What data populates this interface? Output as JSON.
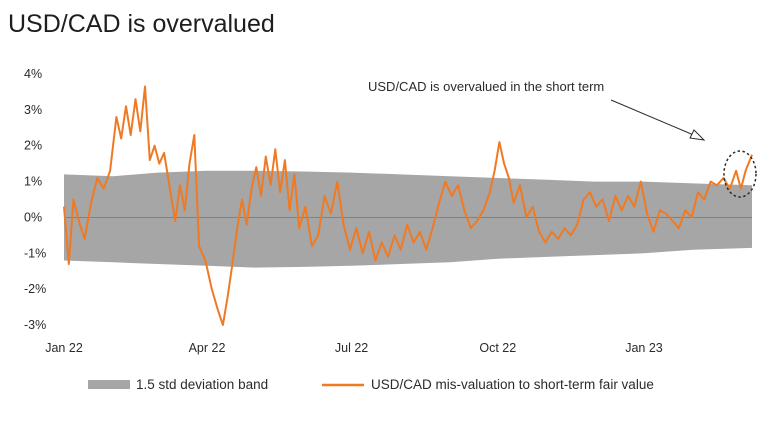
{
  "title": "USD/CAD is overvalued",
  "chart_data": {
    "type": "line",
    "title": "USD/CAD is overvalued",
    "xlabel": "",
    "ylabel": "",
    "ylim": [
      -3,
      4
    ],
    "yticks": [
      "4%",
      "3%",
      "2%",
      "1%",
      "0%",
      "-1%",
      "-2%",
      "-3%"
    ],
    "ytick_values": [
      4,
      3,
      2,
      1,
      0,
      -1,
      -2,
      -3
    ],
    "xticks": [
      "Jan 22",
      "Apr 22",
      "Jul 22",
      "Oct 22",
      "Jan 23"
    ],
    "xtick_dates": [
      "2022-01-01",
      "2022-04-01",
      "2022-07-01",
      "2022-10-01",
      "2023-01-01"
    ],
    "x_range": [
      "2022-01-01",
      "2023-03-10"
    ],
    "grid": false,
    "legend_position": "bottom",
    "annotation": "USD/CAD is overvalued in the short term",
    "band": {
      "name": "1.5 std deviation band",
      "color": "#a6a6a6",
      "points": [
        {
          "x": "2022-01-01",
          "upper": 1.2,
          "lower": -1.2
        },
        {
          "x": "2022-02-01",
          "upper": 1.15,
          "lower": -1.25
        },
        {
          "x": "2022-03-01",
          "upper": 1.25,
          "lower": -1.3
        },
        {
          "x": "2022-04-01",
          "upper": 1.3,
          "lower": -1.35
        },
        {
          "x": "2022-05-01",
          "upper": 1.3,
          "lower": -1.4
        },
        {
          "x": "2022-06-01",
          "upper": 1.28,
          "lower": -1.38
        },
        {
          "x": "2022-07-01",
          "upper": 1.25,
          "lower": -1.35
        },
        {
          "x": "2022-08-01",
          "upper": 1.2,
          "lower": -1.3
        },
        {
          "x": "2022-09-01",
          "upper": 1.15,
          "lower": -1.25
        },
        {
          "x": "2022-10-01",
          "upper": 1.1,
          "lower": -1.15
        },
        {
          "x": "2022-11-01",
          "upper": 1.05,
          "lower": -1.1
        },
        {
          "x": "2022-12-01",
          "upper": 1.0,
          "lower": -1.05
        },
        {
          "x": "2023-01-01",
          "upper": 1.0,
          "lower": -1.0
        },
        {
          "x": "2023-02-01",
          "upper": 0.95,
          "lower": -0.9
        },
        {
          "x": "2023-03-10",
          "upper": 0.9,
          "lower": -0.85
        }
      ]
    },
    "series": [
      {
        "name": "USD/CAD mis-valuation to short-term fair value",
        "color": "#f07a23",
        "points": [
          {
            "x": "2022-01-01",
            "y": 0.3
          },
          {
            "x": "2022-01-04",
            "y": -1.3
          },
          {
            "x": "2022-01-07",
            "y": 0.5
          },
          {
            "x": "2022-01-11",
            "y": -0.2
          },
          {
            "x": "2022-01-14",
            "y": -0.6
          },
          {
            "x": "2022-01-18",
            "y": 0.4
          },
          {
            "x": "2022-01-22",
            "y": 1.1
          },
          {
            "x": "2022-01-26",
            "y": 0.8
          },
          {
            "x": "2022-01-30",
            "y": 1.3
          },
          {
            "x": "2022-02-03",
            "y": 2.8
          },
          {
            "x": "2022-02-06",
            "y": 2.2
          },
          {
            "x": "2022-02-09",
            "y": 3.1
          },
          {
            "x": "2022-02-12",
            "y": 2.3
          },
          {
            "x": "2022-02-15",
            "y": 3.3
          },
          {
            "x": "2022-02-18",
            "y": 2.4
          },
          {
            "x": "2022-02-21",
            "y": 3.65
          },
          {
            "x": "2022-02-24",
            "y": 1.6
          },
          {
            "x": "2022-02-27",
            "y": 2.0
          },
          {
            "x": "2022-03-02",
            "y": 1.5
          },
          {
            "x": "2022-03-05",
            "y": 1.8
          },
          {
            "x": "2022-03-09",
            "y": 0.7
          },
          {
            "x": "2022-03-12",
            "y": -0.1
          },
          {
            "x": "2022-03-15",
            "y": 0.9
          },
          {
            "x": "2022-03-18",
            "y": 0.2
          },
          {
            "x": "2022-03-21",
            "y": 1.5
          },
          {
            "x": "2022-03-24",
            "y": 2.3
          },
          {
            "x": "2022-03-27",
            "y": -0.8
          },
          {
            "x": "2022-03-31",
            "y": -1.2
          },
          {
            "x": "2022-04-04",
            "y": -2.0
          },
          {
            "x": "2022-04-08",
            "y": -2.6
          },
          {
            "x": "2022-04-11",
            "y": -3.0
          },
          {
            "x": "2022-04-14",
            "y": -2.2
          },
          {
            "x": "2022-04-17",
            "y": -1.3
          },
          {
            "x": "2022-04-20",
            "y": -0.3
          },
          {
            "x": "2022-04-23",
            "y": 0.5
          },
          {
            "x": "2022-04-26",
            "y": -0.2
          },
          {
            "x": "2022-04-29",
            "y": 0.8
          },
          {
            "x": "2022-05-02",
            "y": 1.4
          },
          {
            "x": "2022-05-05",
            "y": 0.6
          },
          {
            "x": "2022-05-08",
            "y": 1.7
          },
          {
            "x": "2022-05-11",
            "y": 0.9
          },
          {
            "x": "2022-05-14",
            "y": 1.9
          },
          {
            "x": "2022-05-17",
            "y": 0.7
          },
          {
            "x": "2022-05-20",
            "y": 1.6
          },
          {
            "x": "2022-05-23",
            "y": 0.2
          },
          {
            "x": "2022-05-26",
            "y": 1.2
          },
          {
            "x": "2022-05-29",
            "y": -0.3
          },
          {
            "x": "2022-06-02",
            "y": 0.3
          },
          {
            "x": "2022-06-06",
            "y": -0.8
          },
          {
            "x": "2022-06-10",
            "y": -0.5
          },
          {
            "x": "2022-06-14",
            "y": 0.6
          },
          {
            "x": "2022-06-18",
            "y": 0.1
          },
          {
            "x": "2022-06-22",
            "y": 1.0
          },
          {
            "x": "2022-06-26",
            "y": -0.2
          },
          {
            "x": "2022-06-30",
            "y": -0.9
          },
          {
            "x": "2022-07-04",
            "y": -0.3
          },
          {
            "x": "2022-07-08",
            "y": -1.0
          },
          {
            "x": "2022-07-12",
            "y": -0.4
          },
          {
            "x": "2022-07-16",
            "y": -1.2
          },
          {
            "x": "2022-07-20",
            "y": -0.7
          },
          {
            "x": "2022-07-24",
            "y": -1.1
          },
          {
            "x": "2022-07-28",
            "y": -0.5
          },
          {
            "x": "2022-08-01",
            "y": -0.9
          },
          {
            "x": "2022-08-05",
            "y": -0.2
          },
          {
            "x": "2022-08-09",
            "y": -0.7
          },
          {
            "x": "2022-08-13",
            "y": -0.4
          },
          {
            "x": "2022-08-17",
            "y": -0.9
          },
          {
            "x": "2022-08-21",
            "y": -0.3
          },
          {
            "x": "2022-08-25",
            "y": 0.4
          },
          {
            "x": "2022-08-29",
            "y": 1.0
          },
          {
            "x": "2022-09-02",
            "y": 0.6
          },
          {
            "x": "2022-09-06",
            "y": 0.9
          },
          {
            "x": "2022-09-10",
            "y": 0.2
          },
          {
            "x": "2022-09-14",
            "y": -0.3
          },
          {
            "x": "2022-09-18",
            "y": -0.1
          },
          {
            "x": "2022-09-22",
            "y": 0.2
          },
          {
            "x": "2022-09-26",
            "y": 0.7
          },
          {
            "x": "2022-09-29",
            "y": 1.3
          },
          {
            "x": "2022-10-02",
            "y": 2.1
          },
          {
            "x": "2022-10-05",
            "y": 1.5
          },
          {
            "x": "2022-10-08",
            "y": 1.1
          },
          {
            "x": "2022-10-11",
            "y": 0.4
          },
          {
            "x": "2022-10-15",
            "y": 0.9
          },
          {
            "x": "2022-10-19",
            "y": 0.0
          },
          {
            "x": "2022-10-23",
            "y": 0.3
          },
          {
            "x": "2022-10-27",
            "y": -0.4
          },
          {
            "x": "2022-10-31",
            "y": -0.7
          },
          {
            "x": "2022-11-04",
            "y": -0.4
          },
          {
            "x": "2022-11-08",
            "y": -0.6
          },
          {
            "x": "2022-11-12",
            "y": -0.3
          },
          {
            "x": "2022-11-16",
            "y": -0.5
          },
          {
            "x": "2022-11-20",
            "y": -0.2
          },
          {
            "x": "2022-11-24",
            "y": 0.5
          },
          {
            "x": "2022-11-28",
            "y": 0.7
          },
          {
            "x": "2022-12-02",
            "y": 0.3
          },
          {
            "x": "2022-12-06",
            "y": 0.5
          },
          {
            "x": "2022-12-10",
            "y": -0.1
          },
          {
            "x": "2022-12-14",
            "y": 0.6
          },
          {
            "x": "2022-12-18",
            "y": 0.2
          },
          {
            "x": "2022-12-22",
            "y": 0.6
          },
          {
            "x": "2022-12-26",
            "y": 0.3
          },
          {
            "x": "2022-12-30",
            "y": 1.0
          },
          {
            "x": "2023-01-03",
            "y": 0.1
          },
          {
            "x": "2023-01-07",
            "y": -0.4
          },
          {
            "x": "2023-01-11",
            "y": 0.2
          },
          {
            "x": "2023-01-15",
            "y": 0.1
          },
          {
            "x": "2023-01-19",
            "y": -0.1
          },
          {
            "x": "2023-01-23",
            "y": -0.3
          },
          {
            "x": "2023-01-27",
            "y": 0.2
          },
          {
            "x": "2023-01-31",
            "y": 0.0
          },
          {
            "x": "2023-02-04",
            "y": 0.7
          },
          {
            "x": "2023-02-08",
            "y": 0.5
          },
          {
            "x": "2023-02-12",
            "y": 1.0
          },
          {
            "x": "2023-02-16",
            "y": 0.9
          },
          {
            "x": "2023-02-20",
            "y": 1.1
          },
          {
            "x": "2023-02-24",
            "y": 0.8
          },
          {
            "x": "2023-02-28",
            "y": 1.3
          },
          {
            "x": "2023-03-03",
            "y": 0.8
          },
          {
            "x": "2023-03-06",
            "y": 1.3
          },
          {
            "x": "2023-03-10",
            "y": 1.75
          }
        ]
      }
    ]
  }
}
